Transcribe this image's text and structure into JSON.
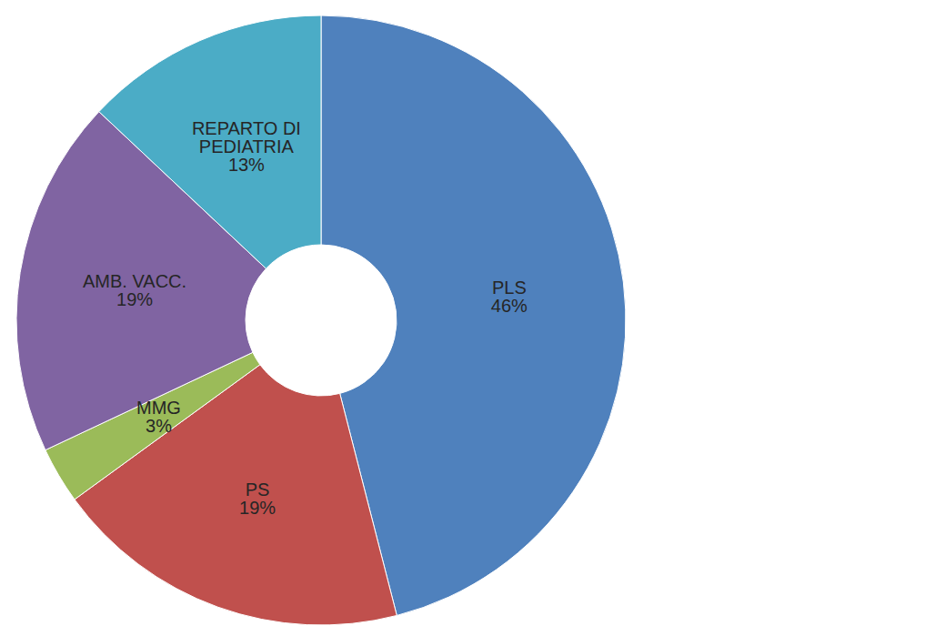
{
  "chart_data": {
    "type": "pie",
    "categories": [
      "PLS",
      "PS",
      "MMG",
      "AMB. VACC.",
      "REPARTO DI PEDIATRIA"
    ],
    "values": [
      46,
      19,
      3,
      19,
      13
    ],
    "value_labels": [
      "46%",
      "19%",
      "3%",
      "19%",
      "13%"
    ],
    "colors": [
      "#4f81bd",
      "#c0504d",
      "#9bbb59",
      "#8064a2",
      "#4bacc6"
    ],
    "data_labels": true
  }
}
